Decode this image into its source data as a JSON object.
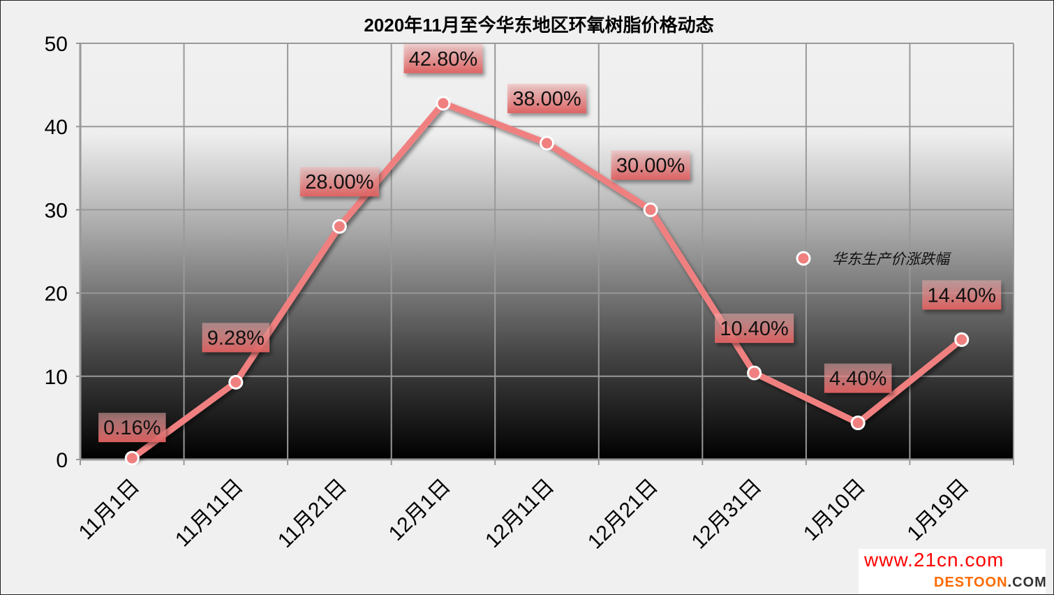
{
  "chart_data": {
    "type": "line",
    "title": "2020年11月至今华东地区环氧树脂价格动态",
    "categories": [
      "11月1日",
      "11月11日",
      "11月21日",
      "12月1日",
      "12月11日",
      "12月21日",
      "12月31日",
      "1月10日",
      "1月19日"
    ],
    "series": [
      {
        "name": "华东生产价涨跌幅",
        "values": [
          0.16,
          9.28,
          28.0,
          42.8,
          38.0,
          30.0,
          10.4,
          4.4,
          14.4
        ],
        "labels": [
          "0.16%",
          "9.28%",
          "28.00%",
          "42.80%",
          "38.00%",
          "30.00%",
          "10.40%",
          "4.40%",
          "14.40%"
        ],
        "color": "#f08080"
      }
    ],
    "ylim": [
      0,
      50
    ],
    "yticks": [
      "0",
      "10",
      "20",
      "30",
      "40",
      "50"
    ],
    "grid": true,
    "legend": "right"
  },
  "watermark": {
    "line1": "www.21cn.com",
    "line2a": "DESTOON",
    "line2b": ".COM"
  }
}
